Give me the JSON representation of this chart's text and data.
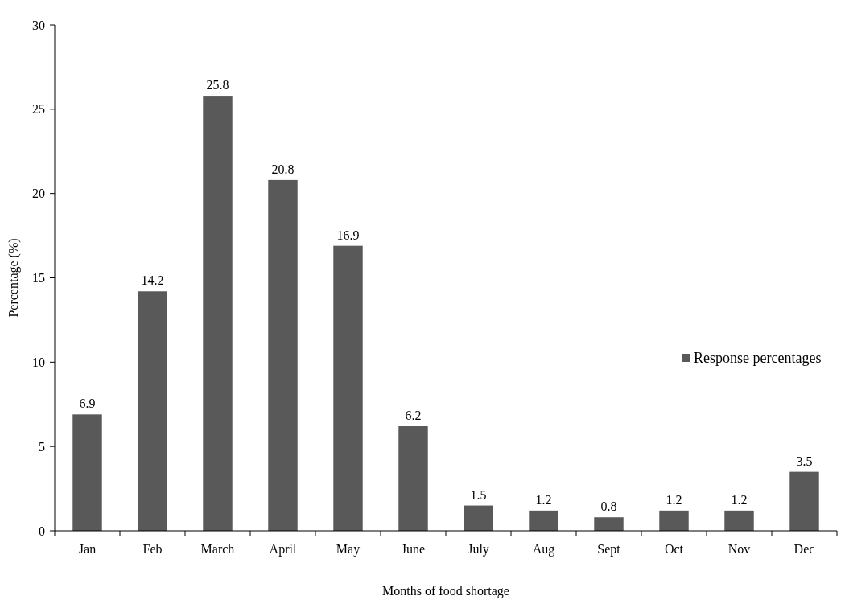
{
  "chart_data": {
    "type": "bar",
    "xlabel": "Months of food shortage",
    "ylabel": "Percentage (%)",
    "categories": [
      "Jan",
      "Feb",
      "March",
      "April",
      "May",
      "June",
      "July",
      "Aug",
      "Sept",
      "Oct",
      "Nov",
      "Dec"
    ],
    "series": [
      {
        "name": "Response percentages",
        "color": "#595959",
        "values": [
          6.9,
          14.2,
          25.8,
          20.8,
          16.9,
          6.2,
          1.5,
          1.2,
          0.8,
          1.2,
          1.2,
          3.5
        ]
      }
    ],
    "ylim": [
      0,
      30
    ],
    "yticks": [
      0,
      5,
      10,
      15,
      20,
      25,
      30
    ],
    "data_labels": true,
    "legend": "right",
    "grid": false
  }
}
